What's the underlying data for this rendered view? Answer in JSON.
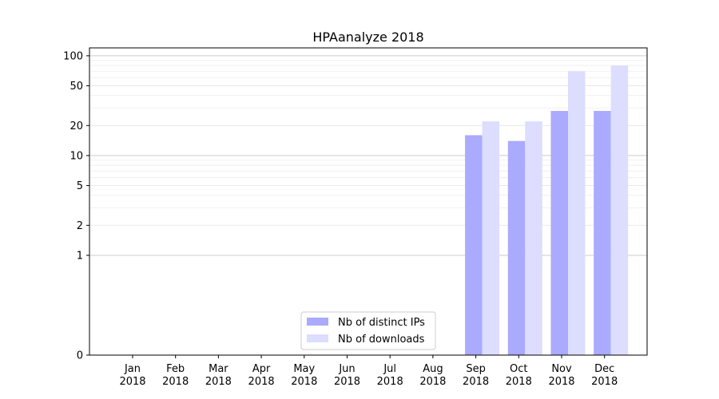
{
  "chart_data": {
    "type": "bar",
    "title": "HPAanalyze 2018",
    "xlabel": "",
    "ylabel": "",
    "y_scale": "symlog",
    "ylim": [
      0,
      120
    ],
    "yticks": [
      0,
      1,
      2,
      5,
      10,
      20,
      50,
      100
    ],
    "grid": true,
    "legend_position": "lower-center",
    "categories": [
      "Jan\n2018",
      "Feb\n2018",
      "Mar\n2018",
      "Apr\n2018",
      "May\n2018",
      "Jun\n2018",
      "Jul\n2018",
      "Aug\n2018",
      "Sep\n2018",
      "Oct\n2018",
      "Nov\n2018",
      "Dec\n2018"
    ],
    "series": [
      {
        "name": "Nb of distinct IPs",
        "color": "#aaaaff",
        "values": [
          0,
          0,
          0,
          0,
          0,
          0,
          0,
          0,
          16,
          14,
          28,
          28
        ]
      },
      {
        "name": "Nb of downloads",
        "color": "#ddddff",
        "values": [
          0,
          0,
          0,
          0,
          0,
          0,
          0,
          0,
          22,
          22,
          70,
          80
        ]
      }
    ]
  }
}
